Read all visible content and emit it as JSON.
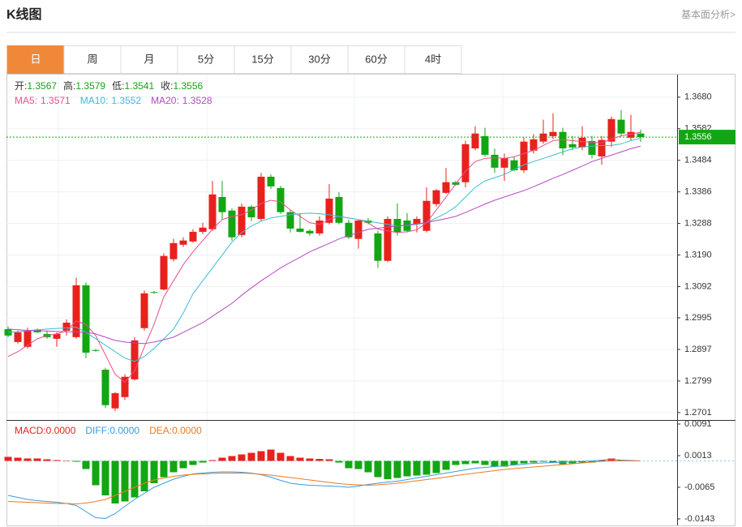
{
  "header": {
    "title": "K线图",
    "link": "基本面分析>"
  },
  "tabs": [
    "日",
    "周",
    "月",
    "5分",
    "15分",
    "30分",
    "60分",
    "4时"
  ],
  "active_tab": 0,
  "chart_data": [
    {
      "type": "candlestick",
      "info": [
        {
          "label": "开:",
          "value": "1.3567"
        },
        {
          "label": "高:",
          "value": "1.3579"
        },
        {
          "label": "低:",
          "value": "1.3541"
        },
        {
          "label": "收:",
          "value": "1.3556"
        }
      ],
      "info_color": "#16a316",
      "ylim": [
        1.2683,
        1.375
      ],
      "yticks": [
        {
          "value": 1.368,
          "label": "1.3680"
        },
        {
          "value": 1.3582,
          "label": "1.3582"
        },
        {
          "value": 1.3484,
          "label": "1.3484"
        },
        {
          "value": 1.3386,
          "label": "1.3386"
        },
        {
          "value": 1.3288,
          "label": "1.3288"
        },
        {
          "value": 1.319,
          "label": "1.3190"
        },
        {
          "value": 1.3092,
          "label": "1.3092"
        },
        {
          "value": 1.2995,
          "label": "1.2995"
        },
        {
          "value": 1.2897,
          "label": "1.2897"
        },
        {
          "value": 1.2799,
          "label": "1.2799"
        },
        {
          "value": 1.2701,
          "label": "1.2701"
        }
      ],
      "grid": true,
      "up_color": "#e8211d",
      "down_color": "#13a613",
      "last_price_color": "#13a613",
      "candles": {
        "open": [
          1.296,
          1.292,
          1.2905,
          1.2958,
          1.2945,
          1.293,
          1.2955,
          1.2935,
          1.3096,
          1.2895,
          1.2834,
          1.2714,
          1.2749,
          1.2804,
          1.2963,
          1.3075,
          1.3083,
          1.3177,
          1.3222,
          1.3232,
          1.3262,
          1.327,
          1.337,
          1.3328,
          1.3252,
          1.334,
          1.3302,
          1.3433,
          1.3398,
          1.3323,
          1.3272,
          1.3265,
          1.3257,
          1.329,
          1.337,
          1.329,
          1.324,
          1.3297,
          1.3257,
          1.3172,
          1.3302,
          1.3297,
          1.3287,
          1.3265,
          1.3348,
          1.3383,
          1.3416,
          1.3416,
          1.3521,
          1.3559,
          1.3501,
          1.3461,
          1.3484,
          1.3453,
          1.3514,
          1.3542,
          1.3559,
          1.3572,
          1.3534,
          1.3524,
          1.3544,
          1.3496,
          1.3542,
          1.361,
          1.3554,
          1.3567
        ],
        "high": [
          1.2968,
          1.2955,
          1.2965,
          1.2962,
          1.2955,
          1.295,
          1.299,
          1.312,
          1.3105,
          1.2898,
          1.284,
          1.2765,
          1.282,
          1.2935,
          1.308,
          1.3078,
          1.3195,
          1.324,
          1.3245,
          1.327,
          1.329,
          1.342,
          1.342,
          1.3335,
          1.335,
          1.3345,
          1.3445,
          1.344,
          1.3405,
          1.333,
          1.332,
          1.327,
          1.331,
          1.341,
          1.3385,
          1.33,
          1.33,
          1.3305,
          1.3265,
          1.331,
          1.335,
          1.332,
          1.331,
          1.34,
          1.3395,
          1.346,
          1.342,
          1.3545,
          1.359,
          1.3585,
          1.352,
          1.3505,
          1.3495,
          1.3555,
          1.3565,
          1.361,
          1.363,
          1.3585,
          1.356,
          1.359,
          1.356,
          1.356,
          1.362,
          1.364,
          1.3625,
          1.3579
        ],
        "low": [
          1.2935,
          1.2915,
          1.29,
          1.2948,
          1.293,
          1.2905,
          1.294,
          1.293,
          1.287,
          1.289,
          1.2715,
          1.2705,
          1.274,
          1.28,
          1.2955,
          1.307,
          1.308,
          1.317,
          1.3215,
          1.3228,
          1.3255,
          1.3265,
          1.33,
          1.3235,
          1.3245,
          1.3295,
          1.3295,
          1.3395,
          1.3318,
          1.326,
          1.326,
          1.325,
          1.325,
          1.3285,
          1.3285,
          1.324,
          1.321,
          1.3285,
          1.315,
          1.3168,
          1.325,
          1.326,
          1.326,
          1.326,
          1.334,
          1.338,
          1.3405,
          1.34,
          1.3515,
          1.3495,
          1.3445,
          1.342,
          1.345,
          1.3445,
          1.3505,
          1.3535,
          1.355,
          1.35,
          1.3515,
          1.3515,
          1.349,
          1.347,
          1.3525,
          1.356,
          1.3545,
          1.3541
        ],
        "close": [
          1.294,
          1.295,
          1.2955,
          1.295,
          1.2935,
          1.2945,
          1.298,
          1.3096,
          1.2887,
          1.2893,
          1.2724,
          1.2761,
          1.2812,
          1.2925,
          1.3071,
          1.3073,
          1.3187,
          1.3227,
          1.3235,
          1.3262,
          1.3275,
          1.3378,
          1.3323,
          1.3245,
          1.334,
          1.3307,
          1.3433,
          1.3403,
          1.3323,
          1.3272,
          1.3262,
          1.3257,
          1.3297,
          1.3365,
          1.329,
          1.3245,
          1.3297,
          1.329,
          1.3172,
          1.3302,
          1.326,
          1.3265,
          1.3302,
          1.3358,
          1.3391,
          1.3416,
          1.3408,
          1.3534,
          1.3567,
          1.3501,
          1.3461,
          1.3491,
          1.3453,
          1.3542,
          1.3549,
          1.3567,
          1.3572,
          1.3521,
          1.3524,
          1.3554,
          1.3501,
          1.3547,
          1.3612,
          1.3567,
          1.3572,
          1.3556
        ]
      },
      "series": [
        {
          "name": "MA5:",
          "last": "1.3571",
          "color": "#e8508c",
          "values": [
            1.2875,
            1.289,
            1.291,
            1.293,
            1.294,
            1.2945,
            1.2955,
            1.2985,
            1.2975,
            1.294,
            1.288,
            1.282,
            1.2795,
            1.283,
            1.2905,
            1.2975,
            1.306,
            1.311,
            1.316,
            1.32,
            1.3235,
            1.327,
            1.33,
            1.331,
            1.3315,
            1.333,
            1.335,
            1.336,
            1.3355,
            1.333,
            1.331,
            1.329,
            1.3285,
            1.33,
            1.331,
            1.3305,
            1.33,
            1.329,
            1.327,
            1.3265,
            1.326,
            1.3262,
            1.3268,
            1.329,
            1.333,
            1.337,
            1.341,
            1.345,
            1.348,
            1.349,
            1.3492,
            1.349,
            1.3495,
            1.3505,
            1.3515,
            1.353,
            1.3545,
            1.3548,
            1.3545,
            1.3542,
            1.354,
            1.3538,
            1.355,
            1.356,
            1.3565,
            1.3571
          ]
        },
        {
          "name": "MA10:",
          "last": "1.3552",
          "color": "#3bbdd4",
          "values": [
            1.295,
            1.2952,
            1.2955,
            1.2958,
            1.296,
            1.2962,
            1.2964,
            1.2966,
            1.295,
            1.293,
            1.291,
            1.289,
            1.287,
            1.286,
            1.2875,
            1.29,
            1.293,
            1.296,
            1.301,
            1.307,
            1.311,
            1.315,
            1.319,
            1.323,
            1.326,
            1.328,
            1.3295,
            1.3305,
            1.331,
            1.3315,
            1.3318,
            1.332,
            1.3318,
            1.3315,
            1.331,
            1.3305,
            1.33,
            1.3295,
            1.329,
            1.3285,
            1.328,
            1.3282,
            1.3285,
            1.329,
            1.3305,
            1.332,
            1.334,
            1.337,
            1.34,
            1.342,
            1.343,
            1.344,
            1.3455,
            1.347,
            1.348,
            1.349,
            1.35,
            1.351,
            1.352,
            1.3525,
            1.3528,
            1.353,
            1.353,
            1.3535,
            1.3545,
            1.3552
          ]
        },
        {
          "name": "MA20:",
          "last": "1.3528",
          "color": "#b44ac2",
          "values": [
            1.296,
            1.2958,
            1.2956,
            1.2955,
            1.2954,
            1.2953,
            1.2952,
            1.2951,
            1.295,
            1.2945,
            1.2935,
            1.2925,
            1.292,
            1.2917,
            1.2915,
            1.292,
            1.2927,
            1.2935,
            1.295,
            1.2965,
            1.298,
            1.3,
            1.302,
            1.304,
            1.3065,
            1.3088,
            1.311,
            1.313,
            1.315,
            1.3167,
            1.3183,
            1.32,
            1.3213,
            1.3226,
            1.324,
            1.325,
            1.326,
            1.327,
            1.3273,
            1.3277,
            1.328,
            1.3283,
            1.3287,
            1.329,
            1.3297,
            1.3303,
            1.331,
            1.3322,
            1.3335,
            1.3348,
            1.336,
            1.337,
            1.338,
            1.339,
            1.3402,
            1.3415,
            1.3428,
            1.344,
            1.3453,
            1.3466,
            1.348,
            1.349,
            1.35,
            1.351,
            1.352,
            1.3528
          ]
        }
      ]
    },
    {
      "type": "macd",
      "ylim": [
        -0.0159,
        0.0097
      ],
      "yticks": [
        0.0091,
        0.0013,
        -0.0065,
        -0.0143
      ],
      "zero_color": "#7fd0e0",
      "histogram": {
        "name": "MACD:",
        "last": "0.0000",
        "up_color": "#e8211d",
        "down_color": "#13a613",
        "values": [
          0.001,
          0.0008,
          0.0006,
          0.0006,
          0.0004,
          0.0002,
          0.0001,
          -0.0002,
          -0.002,
          -0.006,
          -0.0085,
          -0.0105,
          -0.01,
          -0.009,
          -0.0075,
          -0.0055,
          -0.004,
          -0.0028,
          -0.0018,
          -0.001,
          -0.0004,
          0.0002,
          0.0008,
          0.0012,
          0.0016,
          0.002,
          0.0024,
          0.0028,
          0.002,
          0.0012,
          0.0008,
          0.0006,
          0.0005,
          0.0004,
          -0.0004,
          -0.0018,
          -0.002,
          -0.0028,
          -0.004,
          -0.0045,
          -0.0042,
          -0.0038,
          -0.0036,
          -0.0034,
          -0.003,
          -0.0022,
          -0.001,
          -0.0008,
          -0.0006,
          -0.001,
          -0.0014,
          -0.0014,
          -0.001,
          -0.0006,
          -0.0004,
          -0.0002,
          -0.0004,
          -0.0008,
          -0.0006,
          -0.0004,
          -0.0004,
          0.0002,
          0.0006,
          0.0002,
          0.0001,
          0.0
        ]
      },
      "series": [
        {
          "name": "DIFF:",
          "last": "0.0000",
          "color": "#3a9be0",
          "values": [
            -0.0085,
            -0.009,
            -0.0095,
            -0.0098,
            -0.01,
            -0.0102,
            -0.0105,
            -0.011,
            -0.0125,
            -0.014,
            -0.0142,
            -0.013,
            -0.0112,
            -0.0095,
            -0.008,
            -0.0065,
            -0.0055,
            -0.0045,
            -0.0038,
            -0.0032,
            -0.003,
            -0.0028,
            -0.0027,
            -0.0027,
            -0.0028,
            -0.003,
            -0.0034,
            -0.004,
            -0.0048,
            -0.0055,
            -0.0058,
            -0.006,
            -0.0061,
            -0.0062,
            -0.0063,
            -0.0065,
            -0.0062,
            -0.0058,
            -0.0055,
            -0.0052,
            -0.005,
            -0.0046,
            -0.0042,
            -0.0038,
            -0.0034,
            -0.003,
            -0.0026,
            -0.0022,
            -0.0018,
            -0.0016,
            -0.0014,
            -0.0012,
            -0.001,
            -0.0008,
            -0.0006,
            -0.0005,
            -0.0004,
            -0.0003,
            -0.0002,
            -0.0001,
            0.0,
            0.0002,
            0.0004,
            0.0002,
            0.0001,
            0.0
          ]
        },
        {
          "name": "DEA:",
          "last": "0.0000",
          "color": "#f07a1e",
          "values": [
            -0.01,
            -0.0101,
            -0.0102,
            -0.0103,
            -0.0104,
            -0.0105,
            -0.0105,
            -0.0106,
            -0.0104,
            -0.01,
            -0.0095,
            -0.0085,
            -0.0075,
            -0.0065,
            -0.0055,
            -0.0047,
            -0.0042,
            -0.0038,
            -0.0035,
            -0.0033,
            -0.0032,
            -0.0031,
            -0.003,
            -0.003,
            -0.003,
            -0.0031,
            -0.0033,
            -0.0035,
            -0.0038,
            -0.0041,
            -0.0044,
            -0.0047,
            -0.005,
            -0.0053,
            -0.0056,
            -0.0058,
            -0.0059,
            -0.006,
            -0.0059,
            -0.0057,
            -0.0055,
            -0.0052,
            -0.0049,
            -0.0046,
            -0.0043,
            -0.004,
            -0.0036,
            -0.0033,
            -0.003,
            -0.0027,
            -0.0024,
            -0.0021,
            -0.0019,
            -0.0017,
            -0.0015,
            -0.0013,
            -0.0011,
            -0.0009,
            -0.0007,
            -0.0005,
            -0.0003,
            -0.0001,
            0.0,
            0.0,
            0.0,
            0.0
          ]
        }
      ]
    }
  ]
}
